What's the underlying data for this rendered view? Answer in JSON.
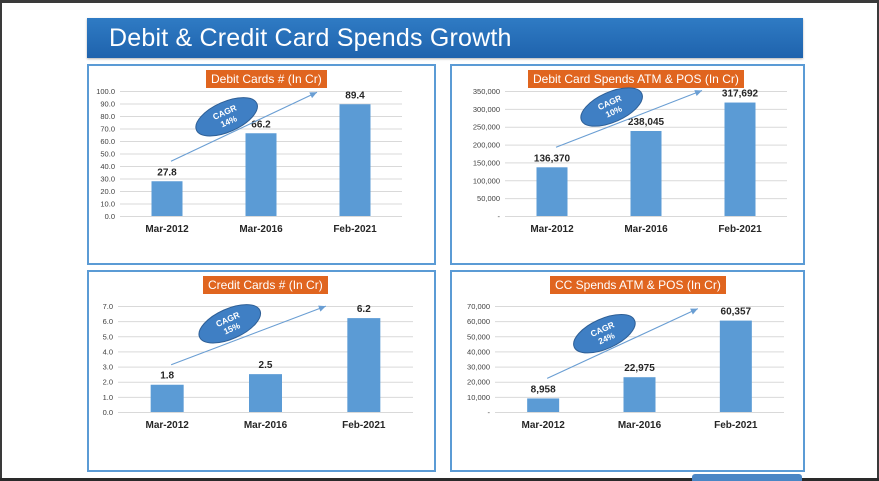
{
  "page": {
    "title": "Debit & Credit Card Spends Growth"
  },
  "colors": {
    "bar": "#5b9bd5",
    "banner": "#2a73bf",
    "panel_title_bg": "#e0651f",
    "panel_border": "#5b9bd5",
    "cagr_fill": "#3f7fc4",
    "arrow": "#6a9ed3"
  },
  "chart_data": [
    {
      "type": "bar",
      "title": "Debit Cards # (In Cr)",
      "categories": [
        "Mar-2012",
        "Mar-2016",
        "Feb-2021"
      ],
      "values": [
        27.8,
        66.2,
        89.4
      ],
      "value_labels": [
        "27.8",
        "66.2",
        "89.4"
      ],
      "ylim": [
        0,
        100
      ],
      "yticks": [
        0,
        10,
        20,
        30,
        40,
        50,
        60,
        70,
        80,
        90,
        100
      ],
      "ytick_labels": [
        "0.0",
        "10.0",
        "20.0",
        "30.0",
        "40.0",
        "50.0",
        "60.0",
        "70.0",
        "80.0",
        "90.0",
        "100.0"
      ],
      "annotation": {
        "line1": "CAGR",
        "line2": "14%"
      },
      "grid": true
    },
    {
      "type": "bar",
      "title": "Debit Card Spends ATM & POS (In Cr)",
      "categories": [
        "Mar-2012",
        "Mar-2016",
        "Feb-2021"
      ],
      "values": [
        136370,
        238045,
        317692
      ],
      "value_labels": [
        "136,370",
        "238,045",
        "317,692"
      ],
      "ylim": [
        0,
        350000
      ],
      "yticks": [
        0,
        50000,
        100000,
        150000,
        200000,
        250000,
        300000,
        350000
      ],
      "ytick_labels": [
        "-",
        "50,000",
        "100,000",
        "150,000",
        "200,000",
        "250,000",
        "300,000",
        "350,000"
      ],
      "annotation": {
        "line1": "CAGR",
        "line2": "10%"
      },
      "grid": true
    },
    {
      "type": "bar",
      "title": "Credit Cards # (In Cr)",
      "categories": [
        "Mar-2012",
        "Mar-2016",
        "Feb-2021"
      ],
      "values": [
        1.8,
        2.5,
        6.2
      ],
      "value_labels": [
        "1.8",
        "2.5",
        "6.2"
      ],
      "ylim": [
        0,
        7
      ],
      "yticks": [
        0,
        1,
        2,
        3,
        4,
        5,
        6,
        7
      ],
      "ytick_labels": [
        "0.0",
        "1.0",
        "2.0",
        "3.0",
        "4.0",
        "5.0",
        "6.0",
        "7.0"
      ],
      "annotation": {
        "line1": "CAGR",
        "line2": "15%"
      },
      "grid": true
    },
    {
      "type": "bar",
      "title": "CC Spends ATM & POS (In Cr)",
      "categories": [
        "Mar-2012",
        "Mar-2016",
        "Feb-2021"
      ],
      "values": [
        8958,
        22975,
        60357
      ],
      "value_labels": [
        "8,958",
        "22,975",
        "60,357"
      ],
      "ylim": [
        0,
        70000
      ],
      "yticks": [
        0,
        10000,
        20000,
        30000,
        40000,
        50000,
        60000,
        70000
      ],
      "ytick_labels": [
        "-",
        "10,000",
        "20,000",
        "30,000",
        "40,000",
        "50,000",
        "60,000",
        "70,000"
      ],
      "annotation": {
        "line1": "CAGR",
        "line2": "24%"
      },
      "grid": true
    }
  ]
}
